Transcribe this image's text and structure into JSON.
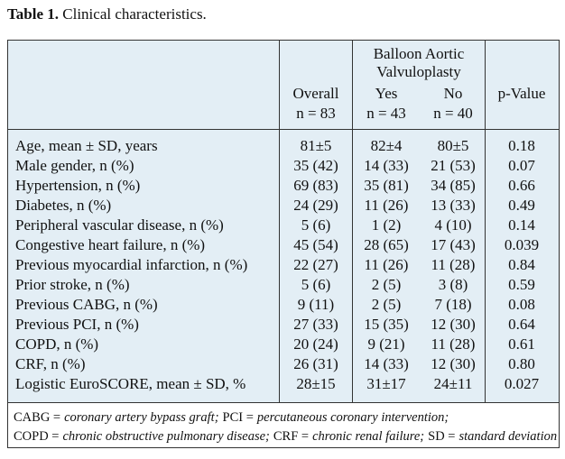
{
  "title": {
    "label": "Table 1.",
    "text": "Clinical characteristics."
  },
  "table": {
    "group_header": [
      "Balloon Aortic",
      "Valvuloplasty"
    ],
    "columns": [
      [
        "Overall",
        "n = 83"
      ],
      [
        "Yes",
        "n = 43"
      ],
      [
        "No",
        "n = 40"
      ],
      [
        "p-Value"
      ]
    ],
    "rows": [
      [
        "Age, mean ± SD, years",
        "81±5",
        "82±4",
        "80±5",
        "0.18"
      ],
      [
        "Male gender, n (%)",
        "35 (42)",
        "14 (33)",
        "21 (53)",
        "0.07"
      ],
      [
        "Hypertension, n (%)",
        "69 (83)",
        "35 (81)",
        "34 (85)",
        "0.66"
      ],
      [
        "Diabetes, n (%)",
        "24 (29)",
        "11 (26)",
        "13 (33)",
        "0.49"
      ],
      [
        "Peripheral vascular disease, n (%)",
        "5 (6)",
        "1 (2)",
        "4 (10)",
        "0.14"
      ],
      [
        "Congestive heart failure, n (%)",
        "45 (54)",
        "28 (65)",
        "17 (43)",
        "0.039"
      ],
      [
        "Previous myocardial infarction, n (%)",
        "22 (27)",
        "11 (26)",
        "11 (28)",
        "0.84"
      ],
      [
        "Prior stroke, n (%)",
        "5 (6)",
        "2 (5)",
        "3 (8)",
        "0.59"
      ],
      [
        "Previous CABG, n (%)",
        "9 (11)",
        "2 (5)",
        "7 (18)",
        "0.08"
      ],
      [
        "Previous PCI, n (%)",
        "27 (33)",
        "15 (35)",
        "12 (30)",
        "0.64"
      ],
      [
        "COPD, n (%)",
        "20 (24)",
        "9 (21)",
        "11 (28)",
        "0.61"
      ],
      [
        "CRF, n (%)",
        "26 (31)",
        "14 (33)",
        "12 (30)",
        "0.80"
      ],
      [
        "Logistic EuroSCORE, mean ± SD, %",
        "28±15",
        "31±17",
        "24±11",
        "0.027"
      ]
    ]
  },
  "footnotes": [
    [
      {
        "term": "CABG =",
        "definition": "coronary artery bypass graft;"
      },
      {
        "term": "PCI =",
        "definition": "percutaneous coronary intervention;"
      }
    ],
    [
      {
        "term": "COPD =",
        "definition": "chronic obstructive pulmonary disease;"
      },
      {
        "term": "CRF =",
        "definition": "chronic renal failure;"
      },
      {
        "term": "SD =",
        "definition": "standard deviation"
      }
    ]
  ]
}
